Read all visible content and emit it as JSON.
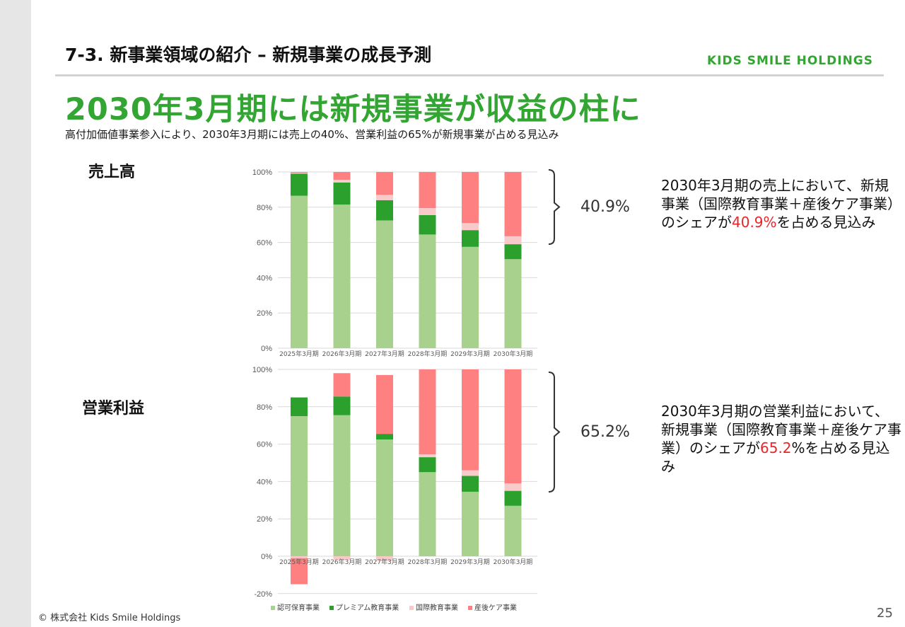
{
  "header": {
    "section_title": "7-3. 新事業領域の紹介 – 新規事業の成長予測",
    "brand": "KIDS SMILE HOLDINGS"
  },
  "headline": "2030年3月期には新規事業が収益の柱に",
  "subline": "高付加価値事業参入により、2030年3月期には売上の40%、営業利益の65%が新規事業が占める見込み",
  "labels": {
    "sales": "売上高",
    "profit": "営業利益"
  },
  "brackets": {
    "sales_value": "40.9%",
    "profit_value": "65.2%"
  },
  "notes": {
    "sales_pre": "2030年3月期の売上において、新規事業（国際教育事業＋産後ケア事業）のシェアが",
    "sales_hl": "40.9%",
    "sales_post": "を占める見込み",
    "profit_pre": "2030年3月期の営業利益において、新規事業（国際教育事業＋産後ケア事業）のシェアが",
    "profit_hl": "65.2",
    "profit_post": "%を占める見込み"
  },
  "footer": {
    "copyright": "© 株式会社 Kids Smile Holdings",
    "page": "25"
  },
  "colors": {
    "brand_green": "#33a532",
    "highlight_red": "#e8262a",
    "series": [
      "#a9d18e",
      "#2ca02c",
      "#f9caca",
      "#ff8080"
    ]
  },
  "chart_data": [
    {
      "type": "bar",
      "stacked": true,
      "title": "売上高",
      "categories": [
        "2025年3月期",
        "2026年3月期",
        "2027年3月期",
        "2028年3月期",
        "2029年3月期",
        "2030年3月期"
      ],
      "ylim": [
        0,
        100
      ],
      "yticks": [
        "0%",
        "20%",
        "40%",
        "60%",
        "80%",
        "100%"
      ],
      "grid": true,
      "series": [
        {
          "name": "認可保育事業",
          "values": [
            86.5,
            81.5,
            72.5,
            64.5,
            57.5,
            50.5
          ]
        },
        {
          "name": "プレミアム教育事業",
          "values": [
            12.5,
            12.5,
            11.5,
            11.0,
            9.5,
            8.5
          ]
        },
        {
          "name": "国際教育事業",
          "values": [
            0.5,
            1.5,
            3.0,
            4.0,
            4.0,
            4.5
          ]
        },
        {
          "name": "産後ケア事業",
          "values": [
            0.5,
            4.5,
            13.0,
            20.5,
            29.0,
            36.5
          ]
        }
      ]
    },
    {
      "type": "bar",
      "stacked": true,
      "title": "営業利益",
      "categories": [
        "2025年3月期",
        "2026年3月期",
        "2027年3月期",
        "2028年3月期",
        "2029年3月期",
        "2030年3月期"
      ],
      "ylim": [
        -20,
        100
      ],
      "yticks": [
        "-20%",
        "0%",
        "20%",
        "40%",
        "60%",
        "80%",
        "100%"
      ],
      "grid": true,
      "legend": "bottom",
      "series": [
        {
          "name": "認可保育事業",
          "values": [
            75.0,
            75.5,
            62.5,
            45.0,
            34.5,
            27.0
          ]
        },
        {
          "name": "プレミアム教育事業",
          "values": [
            10.0,
            10.0,
            3.0,
            8.0,
            8.5,
            8.0
          ]
        },
        {
          "name": "国際教育事業",
          "values": [
            -1.0,
            -2.0,
            -2.5,
            1.5,
            3.0,
            4.0
          ]
        },
        {
          "name": "産後ケア事業",
          "values": [
            -14.0,
            12.5,
            31.5,
            45.5,
            54.0,
            61.0
          ]
        }
      ]
    }
  ]
}
